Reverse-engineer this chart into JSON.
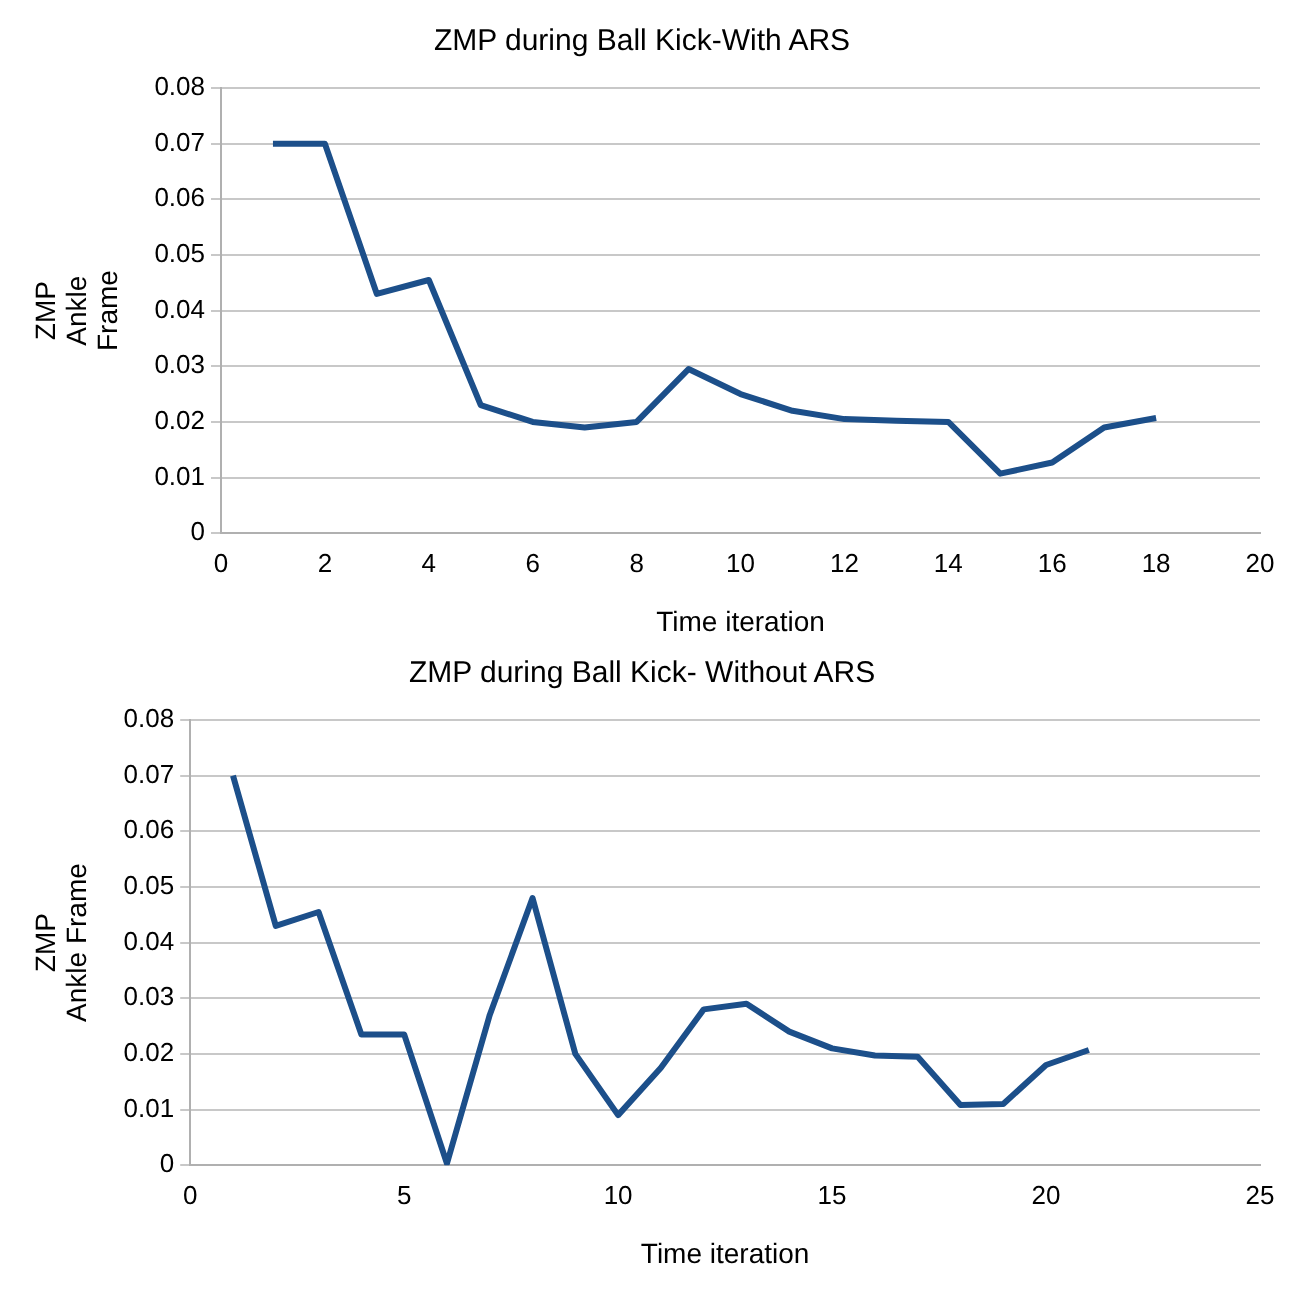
{
  "chart_data": [
    {
      "type": "line",
      "title": "ZMP during Ball Kick-With ARS",
      "xlabel": "Time iteration",
      "ylabel": "ZMP\nAnkle\nFrame",
      "x": [
        1,
        2,
        3,
        4,
        5,
        6,
        7,
        8,
        9,
        10,
        11,
        12,
        13,
        14,
        15,
        16,
        17,
        18
      ],
      "series": [
        {
          "color": "#1c4f8a",
          "values": [
            0.07,
            0.07,
            0.043,
            0.0455,
            0.023,
            0.02,
            0.019,
            0.02,
            0.0295,
            0.025,
            0.022,
            0.0205,
            0.0202,
            0.02,
            0.0107,
            0.0127,
            0.019,
            0.0207
          ]
        }
      ],
      "xlim": [
        0,
        20
      ],
      "xticks": [
        0,
        2,
        4,
        6,
        8,
        10,
        12,
        14,
        16,
        18,
        20
      ],
      "ylim": [
        0,
        0.08
      ],
      "yticks": [
        0,
        0.01,
        0.02,
        0.03,
        0.04,
        0.05,
        0.06,
        0.07,
        0.08
      ],
      "grid": "y",
      "legend": false,
      "marker": "none",
      "line_style": "solid"
    },
    {
      "type": "line",
      "title": "ZMP during Ball Kick- Without ARS",
      "xlabel": "Time iteration",
      "ylabel": "ZMP\nAnkle Frame",
      "x": [
        1,
        2,
        3,
        4,
        5,
        6,
        7,
        8,
        9,
        10,
        11,
        12,
        13,
        14,
        15,
        16,
        17,
        18,
        19,
        20,
        21
      ],
      "series": [
        {
          "color": "#1c4f8a",
          "values": [
            0.07,
            0.043,
            0.0455,
            0.0235,
            0.0235,
            0.0003,
            0.027,
            0.048,
            0.02,
            0.009,
            0.0175,
            0.028,
            0.029,
            0.024,
            0.021,
            0.0197,
            0.0195,
            0.0108,
            0.011,
            0.018,
            0.0207
          ]
        }
      ],
      "xlim": [
        0,
        25
      ],
      "xticks": [
        0,
        5,
        10,
        15,
        20,
        25
      ],
      "ylim": [
        0,
        0.08
      ],
      "yticks": [
        0,
        0.01,
        0.02,
        0.03,
        0.04,
        0.05,
        0.06,
        0.07,
        0.08
      ],
      "grid": "y",
      "legend": false,
      "marker": "none",
      "line_style": "solid"
    }
  ]
}
